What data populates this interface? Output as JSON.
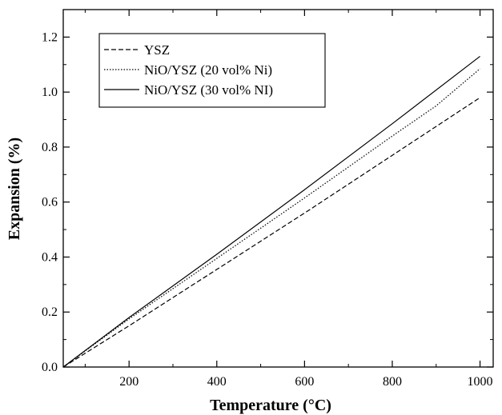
{
  "chart_data": {
    "type": "line",
    "title": "",
    "xlabel": "Temperature (°C)",
    "ylabel": "Expansion (%)",
    "xlim": [
      50,
      1030
    ],
    "ylim": [
      0.0,
      1.3
    ],
    "xticks": [
      200,
      400,
      600,
      800,
      1000
    ],
    "xtick_labels": [
      "200",
      "400",
      "600",
      "800",
      "1000"
    ],
    "yticks": [
      0.0,
      0.2,
      0.4,
      0.6,
      0.8,
      1.0,
      1.2
    ],
    "ytick_labels": [
      "0.0",
      "0.2",
      "0.4",
      "0.6",
      "0.8",
      "1.0",
      "1.2"
    ],
    "grid": false,
    "legend_position": "top-left",
    "series": [
      {
        "name": "YSZ",
        "style": "dashed",
        "color": "#000000",
        "x": [
          50,
          200,
          400,
          600,
          800,
          1000
        ],
        "y": [
          0.0,
          0.15,
          0.355,
          0.56,
          0.77,
          0.98
        ]
      },
      {
        "name": "NiO/YSZ (20 vol% Ni)",
        "style": "dotted",
        "color": "#000000",
        "x": [
          50,
          200,
          400,
          600,
          800,
          900,
          1000
        ],
        "y": [
          0.0,
          0.175,
          0.395,
          0.615,
          0.84,
          0.95,
          1.085
        ]
      },
      {
        "name": "NiO/YSZ (30 vol% NI)",
        "style": "solid",
        "color": "#000000",
        "x": [
          50,
          200,
          400,
          600,
          800,
          1000
        ],
        "y": [
          0.0,
          0.18,
          0.41,
          0.645,
          0.885,
          1.13
        ]
      }
    ]
  }
}
